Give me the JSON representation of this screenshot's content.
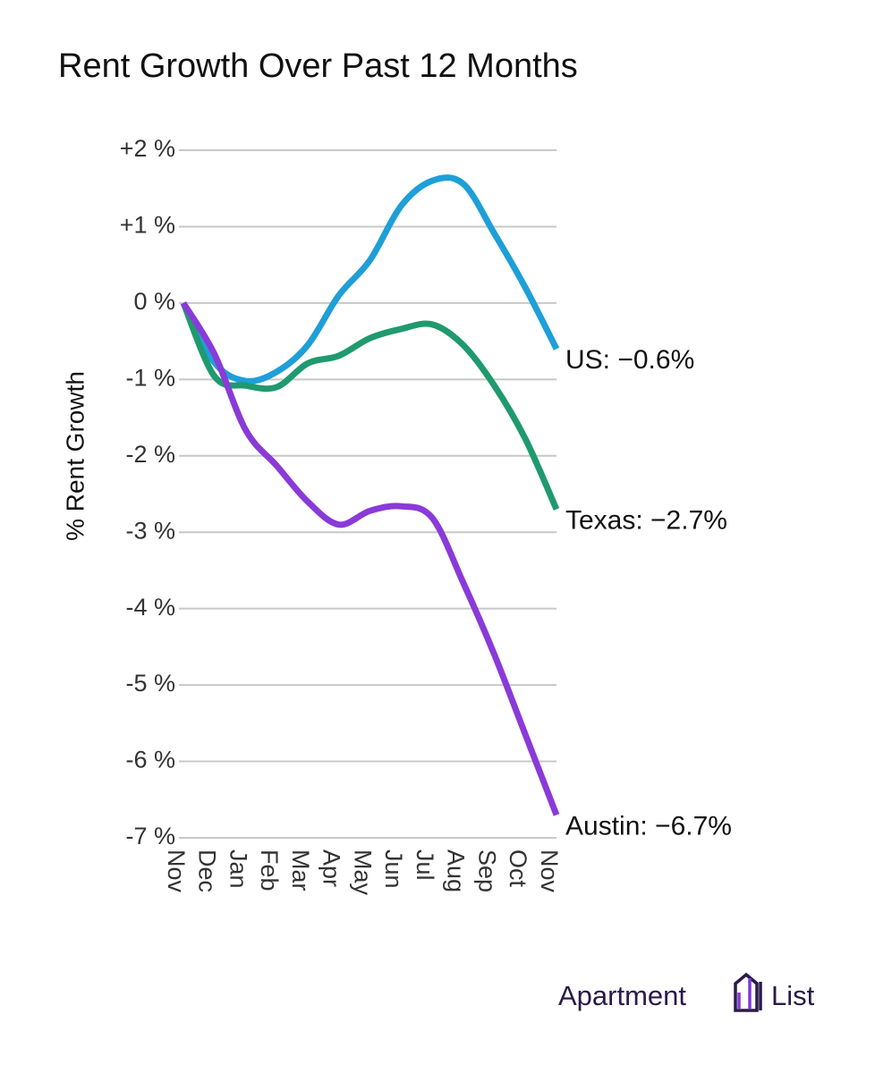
{
  "chart_data": {
    "type": "line",
    "title": "Rent Growth Over Past 12 Months",
    "y_label": "% Rent Growth",
    "categories": [
      "Nov",
      "Dec",
      "Jan",
      "Feb",
      "Mar",
      "Apr",
      "May",
      "Jun",
      "Jul",
      "Aug",
      "Sep",
      "Oct",
      "Nov"
    ],
    "series": [
      {
        "name": "US: −0.6%",
        "color": "#1e9fd8",
        "values": [
          0,
          -0.78,
          -1.02,
          -0.9,
          -0.55,
          0.1,
          0.56,
          1.27,
          1.6,
          1.56,
          0.91,
          0.2,
          -0.6
        ]
      },
      {
        "name": "Texas: −2.7%",
        "color": "#1f9a6e",
        "values": [
          0,
          -0.96,
          -1.08,
          -1.1,
          -0.79,
          -0.69,
          -0.46,
          -0.34,
          -0.28,
          -0.55,
          -1.08,
          -1.78,
          -2.7
        ]
      },
      {
        "name": "Austin: −6.7%",
        "color": "#8a3ad8",
        "values": [
          0,
          -0.67,
          -1.66,
          -2.13,
          -2.6,
          -2.9,
          -2.72,
          -2.66,
          -2.81,
          -3.66,
          -4.6,
          -5.65,
          -6.7
        ]
      }
    ],
    "ylim": [
      -7,
      2
    ],
    "yticks": [
      {
        "value": 2,
        "label": "+2 %"
      },
      {
        "value": 1,
        "label": "+1 %"
      },
      {
        "value": 0,
        "label": "0 %"
      },
      {
        "value": -1,
        "label": "-1 %"
      },
      {
        "value": -2,
        "label": "-2 %"
      },
      {
        "value": -3,
        "label": "-3 %"
      },
      {
        "value": -4,
        "label": "-4 %"
      },
      {
        "value": -5,
        "label": "-5 %"
      },
      {
        "value": -6,
        "label": "-6 %"
      },
      {
        "value": -7,
        "label": "-7 %"
      }
    ],
    "grid": true,
    "brand": [
      "Apartment",
      "List"
    ]
  }
}
